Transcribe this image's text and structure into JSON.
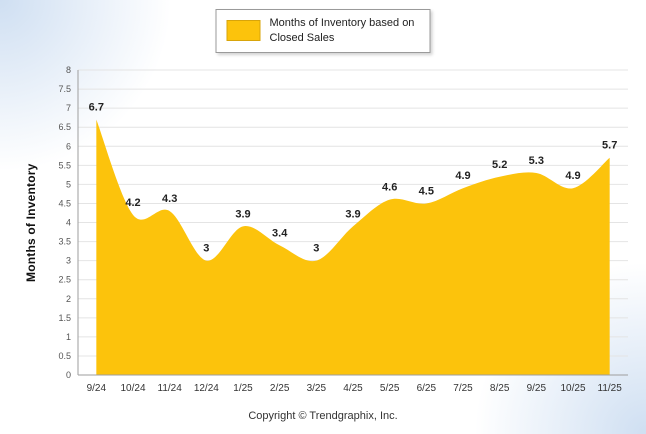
{
  "legend": {
    "label": "Months of Inventory based on Closed Sales"
  },
  "y_axis_title": "Months of Inventory",
  "footer": "Copyright © Trendgraphix, Inc.",
  "chart_data": {
    "type": "area",
    "categories": [
      "9/24",
      "10/24",
      "11/24",
      "12/24",
      "1/25",
      "2/25",
      "3/25",
      "4/25",
      "5/25",
      "6/25",
      "7/25",
      "8/25",
      "9/25",
      "10/25",
      "11/25"
    ],
    "values": [
      6.7,
      4.2,
      4.3,
      3,
      3.9,
      3.4,
      3,
      3.9,
      4.6,
      4.5,
      4.9,
      5.2,
      5.3,
      4.9,
      5.7
    ],
    "title": "",
    "xlabel": "",
    "ylabel": "Months of Inventory",
    "ylim": [
      0,
      8
    ],
    "ytick_step": 0.5,
    "legend": [
      "Months of Inventory based on Closed Sales"
    ],
    "legend_position": "top-center",
    "grid": true,
    "colors": {
      "area_fill": "#FCC30C",
      "label_text": "#222222",
      "axis_text": "#555555",
      "x_label_text": "#333333",
      "grid_line": "#e4e4e4",
      "axis_line": "#9e9e9e"
    }
  }
}
